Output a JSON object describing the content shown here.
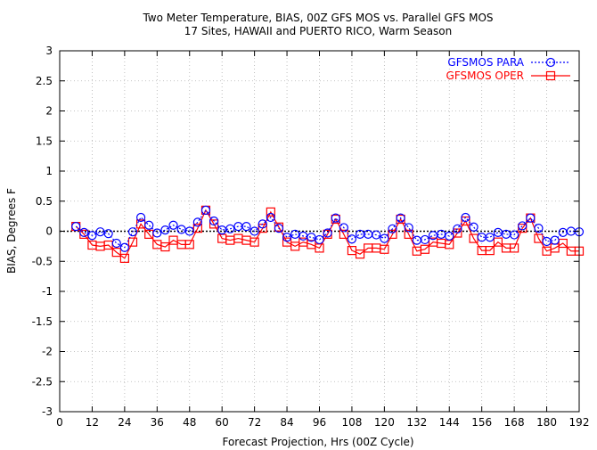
{
  "chart_data": {
    "type": "line",
    "title": "Two Meter Temperature, BIAS, 00Z GFS MOS vs. Parallel GFS MOS",
    "subtitle": "17 Sites, HAWAII and PUERTO RICO, Warm Season",
    "xlabel": "Forecast Projection, Hrs (00Z Cycle)",
    "ylabel": "BIAS, Degrees F",
    "xlim": [
      0,
      192
    ],
    "ylim": [
      -3,
      3
    ],
    "x_ticks": [
      0,
      12,
      24,
      36,
      48,
      60,
      72,
      84,
      96,
      108,
      120,
      132,
      144,
      156,
      168,
      180,
      192
    ],
    "y_ticks": [
      -3,
      -2.5,
      -2,
      -1.5,
      -1,
      -0.5,
      0,
      0.5,
      1,
      1.5,
      2,
      2.5,
      3
    ],
    "y_tick_labels": [
      "-3",
      "-2.5",
      "-2",
      "-1.5",
      "-1",
      "-0.5",
      "0",
      "0.5",
      "1",
      "1.5",
      "2",
      "2.5",
      "3"
    ],
    "grid": true,
    "zero_line": true,
    "legend_position": "top-right",
    "x": [
      6,
      9,
      12,
      15,
      18,
      21,
      24,
      27,
      30,
      33,
      36,
      39,
      42,
      45,
      48,
      51,
      54,
      57,
      60,
      63,
      66,
      69,
      72,
      75,
      78,
      81,
      84,
      87,
      90,
      93,
      96,
      99,
      102,
      105,
      108,
      111,
      114,
      117,
      120,
      123,
      126,
      129,
      132,
      135,
      138,
      141,
      144,
      147,
      150,
      153,
      156,
      159,
      162,
      165,
      168,
      171,
      174,
      177,
      180,
      183,
      186,
      189,
      192
    ],
    "series": [
      {
        "name": "GFSMOS PARA",
        "color": "#0000ff",
        "marker": "circle",
        "line_style": "dotted",
        "values": [
          0.08,
          -0.02,
          -0.07,
          -0.01,
          -0.04,
          -0.2,
          -0.27,
          -0.01,
          0.23,
          0.1,
          -0.03,
          0.02,
          0.1,
          0.03,
          0.0,
          0.15,
          0.35,
          0.17,
          0.02,
          0.04,
          0.08,
          0.08,
          0.0,
          0.12,
          0.23,
          0.05,
          -0.1,
          -0.05,
          -0.08,
          -0.1,
          -0.14,
          -0.03,
          0.22,
          0.06,
          -0.13,
          -0.05,
          -0.05,
          -0.06,
          -0.12,
          0.04,
          0.22,
          0.06,
          -0.15,
          -0.14,
          -0.07,
          -0.05,
          -0.08,
          0.04,
          0.23,
          0.07,
          -0.1,
          -0.1,
          -0.02,
          -0.05,
          -0.06,
          0.09,
          0.22,
          0.05,
          -0.17,
          -0.15,
          -0.02,
          0.0,
          -0.01
        ]
      },
      {
        "name": "GFSMOS OPER",
        "color": "#ff0000",
        "marker": "square",
        "line_style": "solid",
        "values": [
          0.08,
          -0.05,
          -0.23,
          -0.25,
          -0.23,
          -0.35,
          -0.45,
          -0.18,
          0.12,
          -0.05,
          -0.22,
          -0.26,
          -0.15,
          -0.22,
          -0.22,
          0.05,
          0.35,
          0.12,
          -0.12,
          -0.15,
          -0.12,
          -0.15,
          -0.18,
          0.05,
          0.32,
          0.07,
          -0.18,
          -0.25,
          -0.18,
          -0.22,
          -0.28,
          -0.05,
          0.2,
          -0.05,
          -0.32,
          -0.38,
          -0.28,
          -0.28,
          -0.3,
          -0.05,
          0.2,
          -0.05,
          -0.33,
          -0.3,
          -0.18,
          -0.2,
          -0.22,
          -0.03,
          0.17,
          -0.12,
          -0.32,
          -0.32,
          -0.18,
          -0.28,
          -0.28,
          0.05,
          0.22,
          -0.12,
          -0.33,
          -0.28,
          -0.2,
          -0.33,
          -0.33
        ]
      }
    ]
  }
}
